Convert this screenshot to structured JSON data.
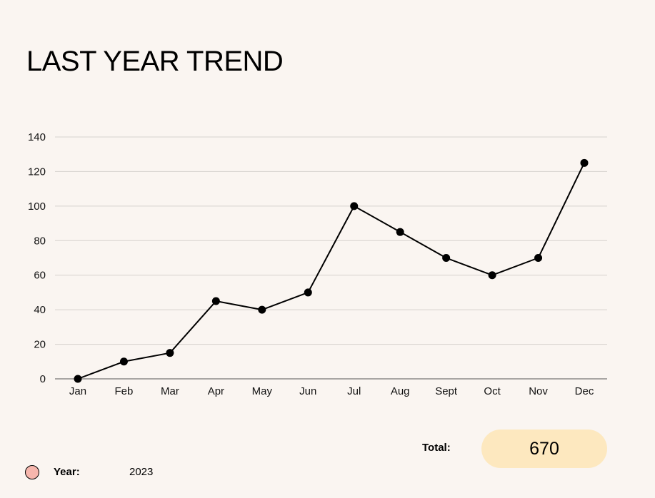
{
  "colors": {
    "background": "#faf5f1",
    "grid": "#d6d2ce",
    "axis": "#555555",
    "line": "#000000",
    "point": "#000000",
    "total_pill": "#fde8bf",
    "legend_dot": "#f6b6ad"
  },
  "chart_data": {
    "type": "line",
    "title": "LAST YEAR TREND",
    "categories": [
      "Jan",
      "Feb",
      "Mar",
      "Apr",
      "May",
      "Jun",
      "Jul",
      "Aug",
      "Sept",
      "Oct",
      "Nov",
      "Dec"
    ],
    "series": [
      {
        "values": [
          0,
          10,
          15,
          45,
          40,
          50,
          100,
          85,
          70,
          60,
          70,
          125
        ]
      }
    ],
    "ylim": [
      0,
      140
    ],
    "yticks": [
      0,
      20,
      40,
      60,
      80,
      100,
      120,
      140
    ],
    "grid": true,
    "xlabel": "",
    "ylabel": ""
  },
  "summary": {
    "total_label": "Total:",
    "total_value": "670"
  },
  "legend": {
    "year_label": "Year:",
    "year_value": "2023"
  }
}
